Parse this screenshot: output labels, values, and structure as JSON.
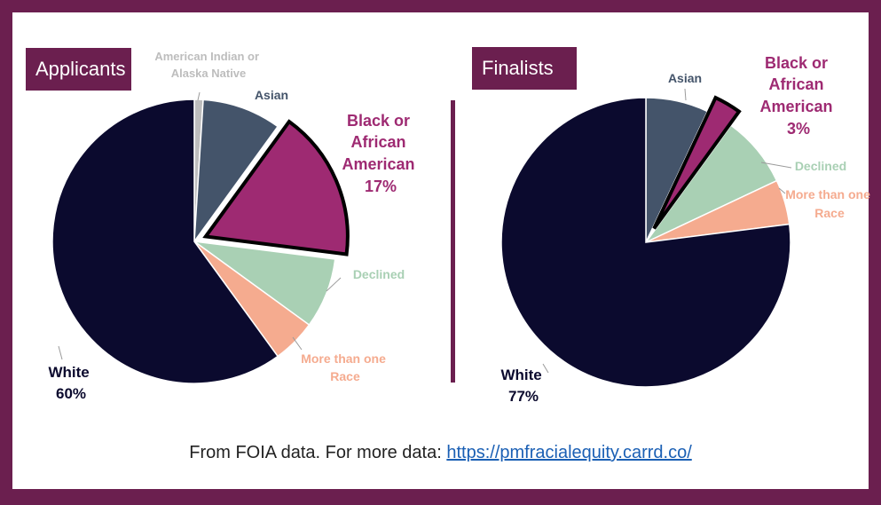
{
  "colors": {
    "background": "#6b1f4f",
    "white": "#0b0a2e",
    "american_indian": "#bdbdbd",
    "asian": "#44546a",
    "black": "#9e2a72",
    "declined": "#a9d0b4",
    "more_than_one": "#f5ab8f"
  },
  "chart_data": [
    {
      "type": "pie",
      "title": "Applicants",
      "slices": [
        {
          "key": "american_indian",
          "label": "American Indian or Alaska Native",
          "value": 1,
          "shown_pct": ""
        },
        {
          "key": "asian",
          "label": "Asian",
          "value": 9,
          "shown_pct": ""
        },
        {
          "key": "black",
          "label": "Black or African American",
          "value": 17,
          "shown_pct": "17%",
          "exploded": true
        },
        {
          "key": "declined",
          "label": "Declined",
          "value": 8,
          "shown_pct": ""
        },
        {
          "key": "more_than_one",
          "label": "More than one Race",
          "value": 5,
          "shown_pct": ""
        },
        {
          "key": "white",
          "label": "White",
          "value": 60,
          "shown_pct": "60%"
        }
      ]
    },
    {
      "type": "pie",
      "title": "Finalists",
      "slices": [
        {
          "key": "asian",
          "label": "Asian",
          "value": 7,
          "shown_pct": ""
        },
        {
          "key": "black",
          "label": "Black or African American",
          "value": 3,
          "shown_pct": "3%",
          "exploded": true
        },
        {
          "key": "declined",
          "label": "Declined",
          "value": 8,
          "shown_pct": ""
        },
        {
          "key": "more_than_one",
          "label": "More than one Race",
          "value": 5,
          "shown_pct": ""
        },
        {
          "key": "white",
          "label": "White",
          "value": 77,
          "shown_pct": "77%"
        }
      ]
    }
  ],
  "labels": {
    "applicants": {
      "american_indian": [
        "American Indian or",
        "Alaska Native"
      ],
      "asian": [
        "Asian"
      ],
      "black": [
        "Black or",
        "African",
        "American",
        "17%"
      ],
      "declined": [
        "Declined"
      ],
      "more_than_one": [
        "More than one",
        "Race"
      ],
      "white": [
        "White",
        "60%"
      ]
    },
    "finalists": {
      "asian": [
        "Asian"
      ],
      "black": [
        "Black or",
        "African",
        "American",
        "3%"
      ],
      "declined": [
        "Declined"
      ],
      "more_than_one": [
        "More than one",
        "Race"
      ],
      "white": [
        "White",
        "77%"
      ]
    }
  },
  "footer": {
    "text": "From FOIA data. For more data: ",
    "link": "https://pmfracialequity.carrd.co/"
  }
}
